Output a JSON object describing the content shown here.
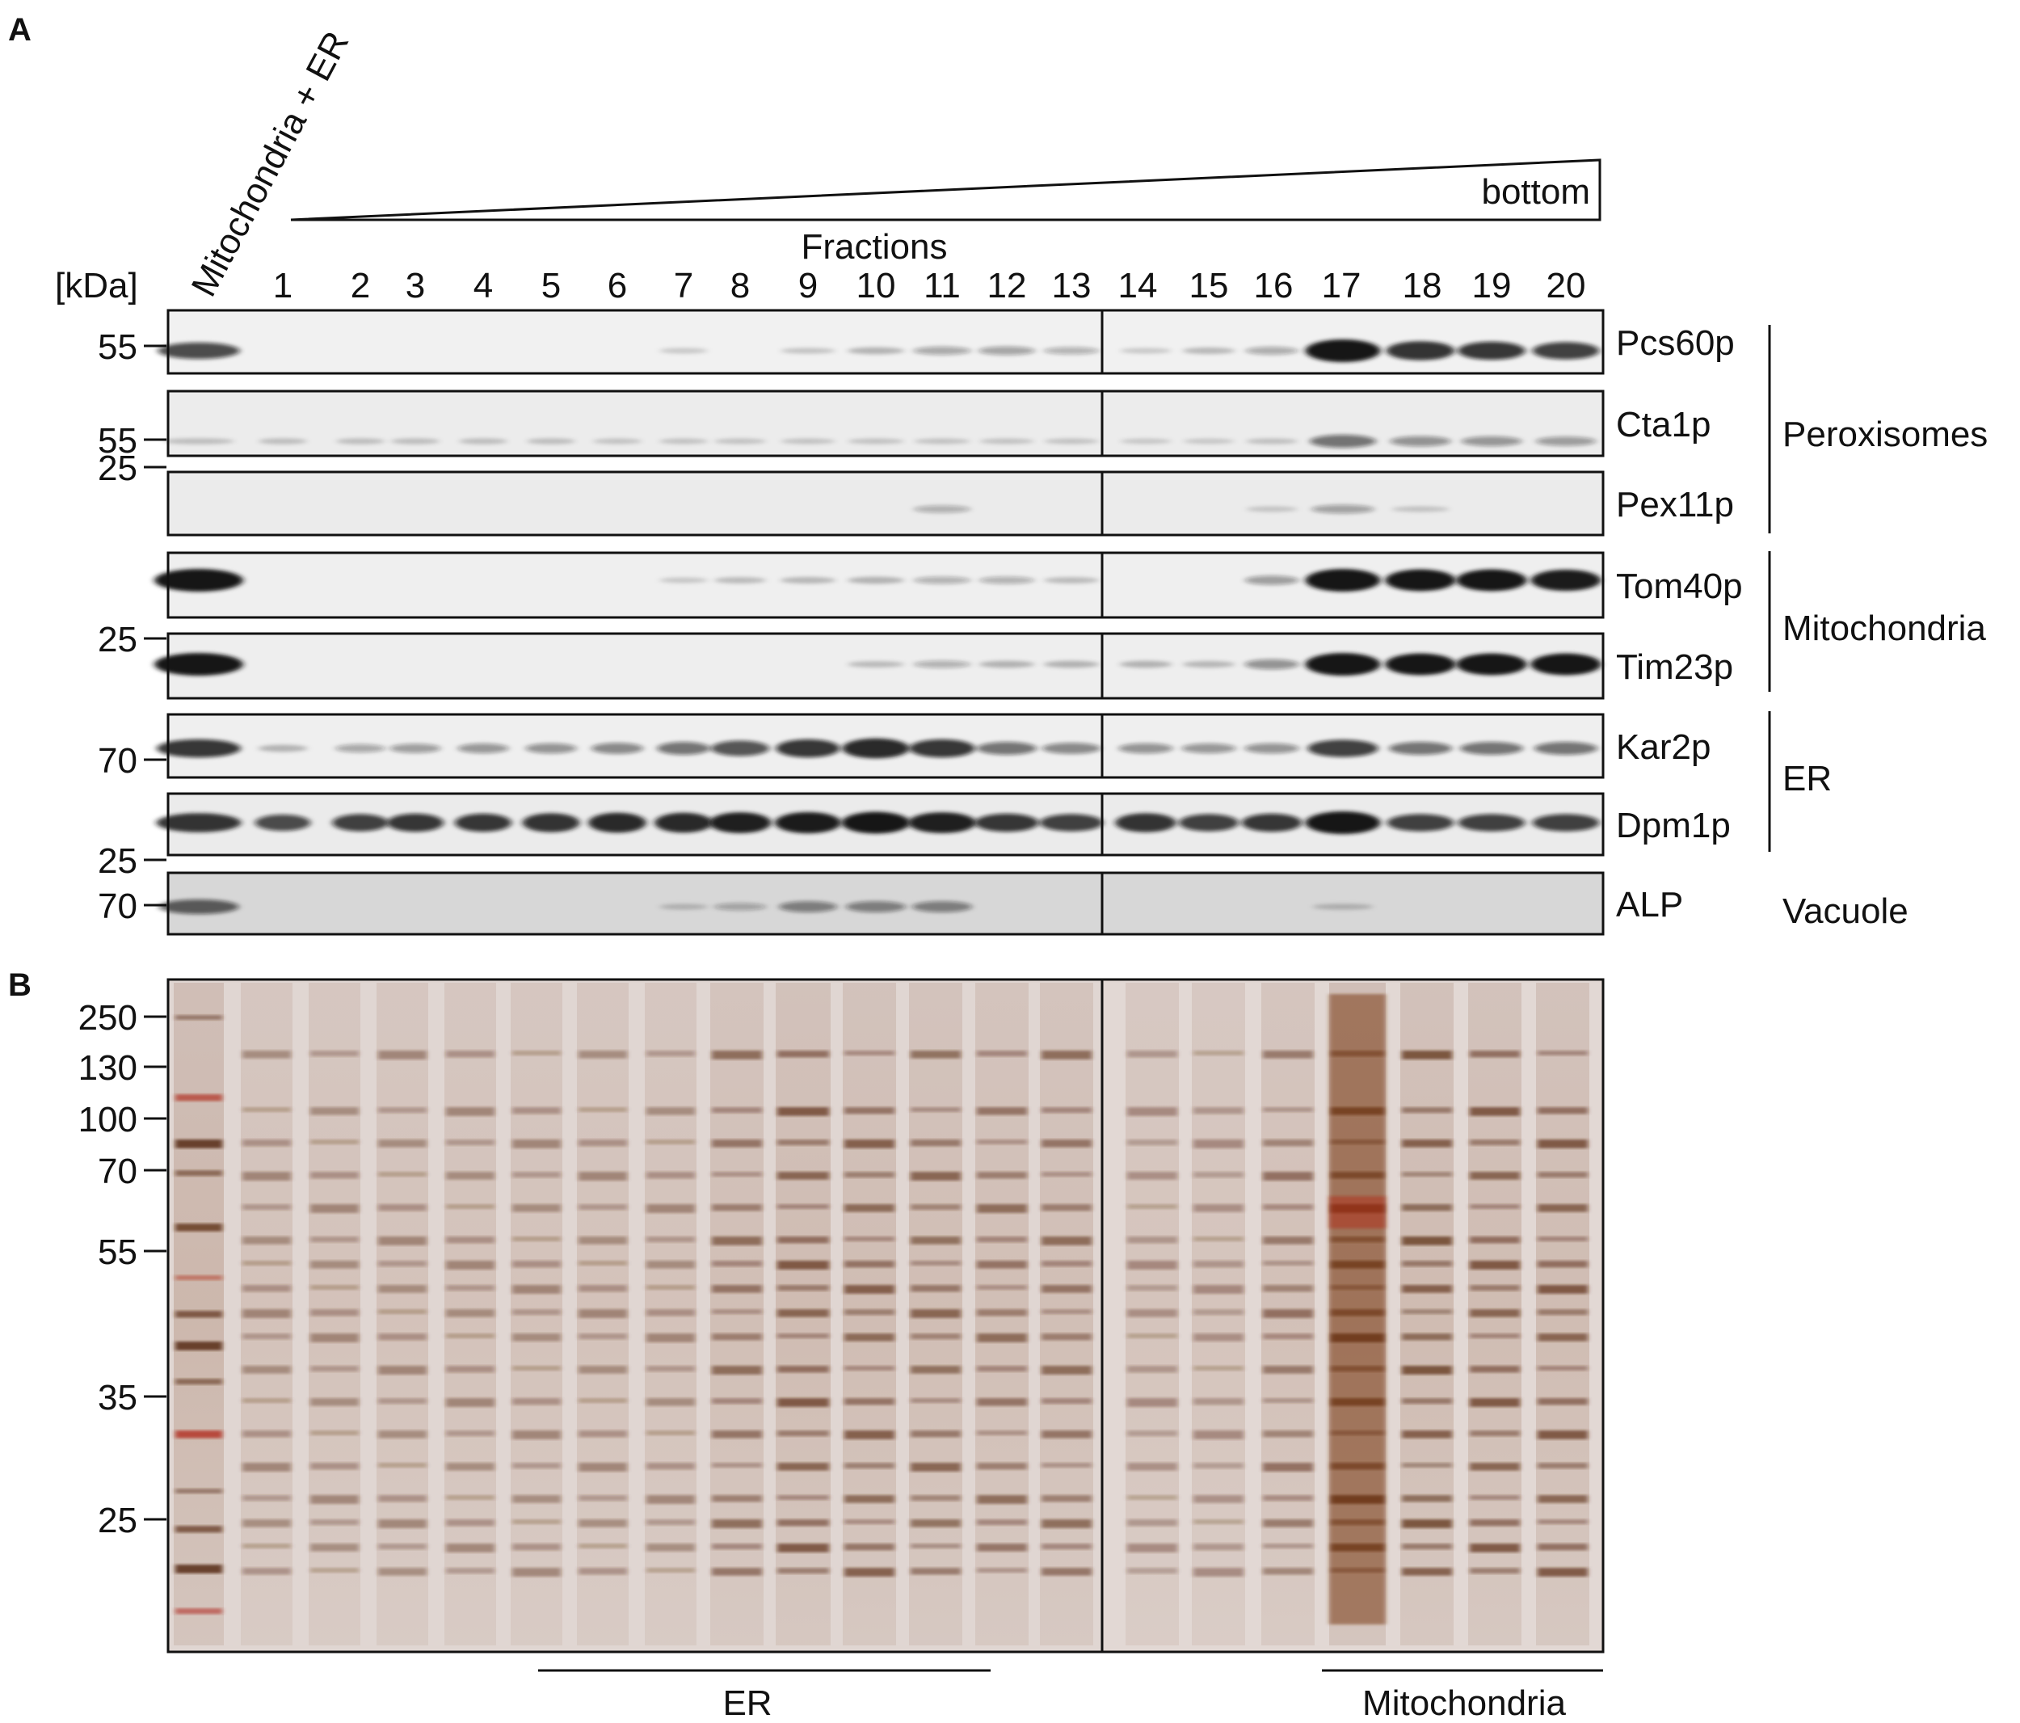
{
  "panel_a": {
    "letter": "A",
    "load_label": "Mitochondria + ER",
    "kda_label": "[kDa]",
    "gradient_label": "bottom",
    "fractions_title": "Fractions",
    "fractions": [
      "1",
      "2",
      "3",
      "4",
      "5",
      "6",
      "7",
      "8",
      "9",
      "10",
      "11",
      "12",
      "13",
      "14",
      "15",
      "16",
      "17",
      "18",
      "19",
      "20"
    ],
    "blots": [
      {
        "protein": "Pcs60p",
        "markers": [
          "55"
        ],
        "tone": "#f1f1f1",
        "profile": [
          0.65,
          0,
          0,
          0,
          0,
          0,
          0,
          0.03,
          0,
          0.05,
          0.12,
          0.2,
          0.22,
          0.15,
          0.03,
          0.1,
          0.18,
          1.0,
          0.8,
          0.75,
          0.7
        ]
      },
      {
        "protein": "Cta1p",
        "markers": [
          "55"
        ],
        "tone": "#ececec",
        "profile": [
          0.06,
          0.06,
          0.06,
          0.06,
          0.06,
          0.06,
          0.04,
          0.04,
          0.04,
          0.04,
          0.04,
          0.04,
          0.04,
          0.04,
          0.02,
          0.02,
          0.05,
          0.45,
          0.3,
          0.28,
          0.25
        ]
      },
      {
        "protein": "Pex11p",
        "markers": [
          "25"
        ],
        "tone": "#ebebeb",
        "profile": [
          0,
          0,
          0,
          0,
          0,
          0,
          0,
          0,
          0,
          0,
          0,
          0.15,
          0,
          0,
          0,
          0,
          0.03,
          0.22,
          0.04,
          0,
          0
        ]
      },
      {
        "protein": "Tom40p",
        "markers": [],
        "tone": "#efefef",
        "profile": [
          1.0,
          0,
          0,
          0,
          0,
          0,
          0,
          0.03,
          0.08,
          0.1,
          0.12,
          0.15,
          0.15,
          0.08,
          0,
          0,
          0.25,
          1.0,
          0.95,
          0.95,
          0.92
        ]
      },
      {
        "protein": "Tim23p",
        "markers": [
          "25"
        ],
        "tone": "#eeeeee",
        "profile": [
          1.0,
          0,
          0,
          0,
          0,
          0,
          0,
          0,
          0,
          0,
          0.08,
          0.15,
          0.12,
          0.12,
          0.12,
          0.1,
          0.3,
          1.0,
          0.95,
          0.95,
          0.95
        ]
      },
      {
        "protein": "Kar2p",
        "markers": [
          "70"
        ],
        "tone": "#efefef",
        "profile": [
          0.75,
          0.12,
          0.2,
          0.25,
          0.28,
          0.3,
          0.35,
          0.45,
          0.6,
          0.75,
          0.85,
          0.75,
          0.45,
          0.35,
          0.3,
          0.28,
          0.3,
          0.7,
          0.45,
          0.45,
          0.45
        ]
      },
      {
        "protein": "Dpm1p",
        "markers": [
          "25"
        ],
        "tone": "#ebebeb",
        "profile": [
          0.8,
          0.65,
          0.7,
          0.75,
          0.75,
          0.8,
          0.85,
          0.85,
          0.9,
          0.92,
          0.95,
          0.9,
          0.75,
          0.7,
          0.8,
          0.7,
          0.75,
          1.0,
          0.7,
          0.7,
          0.7
        ]
      },
      {
        "protein": "ALP",
        "markers": [
          "70"
        ],
        "tone": "#d7d7d7",
        "profile": [
          0.55,
          0,
          0,
          0,
          0,
          0,
          0,
          0.05,
          0.15,
          0.35,
          0.35,
          0.35,
          0,
          0,
          0,
          0,
          0,
          0.06,
          0,
          0,
          0
        ]
      }
    ],
    "groups": [
      {
        "name": "Peroxisomes"
      },
      {
        "name": "Mitochondria"
      },
      {
        "name": "ER"
      },
      {
        "name": "Vacuole"
      }
    ]
  },
  "panel_b": {
    "letter": "B",
    "markers": [
      "250",
      "130",
      "100",
      "70",
      "55",
      "35",
      "25"
    ],
    "under_labels": [
      "ER",
      "Mitochondria"
    ],
    "lane_intensity": [
      1.0,
      0.4,
      0.4,
      0.4,
      0.4,
      0.4,
      0.4,
      0.4,
      0.6,
      0.75,
      0.7,
      0.65,
      0.6,
      0.6,
      0.35,
      0.35,
      0.55,
      1.0,
      0.8,
      0.75,
      0.75
    ],
    "colors": {
      "gel": "#e0d6d2",
      "band": "#5a2c14",
      "accent_red": "#b02a1a"
    }
  }
}
